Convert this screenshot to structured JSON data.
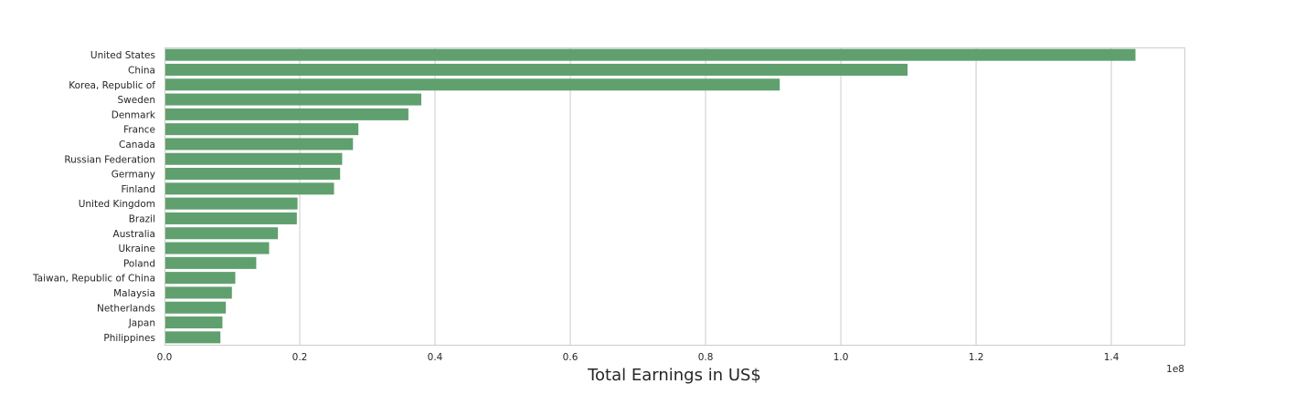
{
  "chart_data": {
    "type": "bar",
    "orientation": "horizontal",
    "categories": [
      "United States",
      "China",
      "Korea, Republic of",
      "Sweden",
      "Denmark",
      "France",
      "Canada",
      "Russian Federation",
      "Germany",
      "Finland",
      "United Kingdom",
      "Brazil",
      "Australia",
      "Ukraine",
      "Poland",
      "Taiwan, Republic of China",
      "Malaysia",
      "Netherlands",
      "Japan",
      "Philippines"
    ],
    "values": [
      143500000,
      109800000,
      90900000,
      37900000,
      36000000,
      28600000,
      27800000,
      26200000,
      25900000,
      25000000,
      19600000,
      19500000,
      16700000,
      15400000,
      13500000,
      10400000,
      9900000,
      9000000,
      8500000,
      8200000
    ],
    "title": "",
    "xlabel": "Total Earnings in US$",
    "ylabel": "",
    "xlim": [
      0,
      150800000
    ],
    "xticks": [
      0,
      20000000,
      40000000,
      60000000,
      80000000,
      100000000,
      120000000,
      140000000
    ],
    "xtick_labels": [
      "0.0",
      "0.2",
      "0.4",
      "0.6",
      "0.8",
      "1.0",
      "1.2",
      "1.4"
    ],
    "offset_text": "1e8",
    "bar_color": "#5fa06e",
    "grid": "vertical",
    "legend": "none"
  }
}
